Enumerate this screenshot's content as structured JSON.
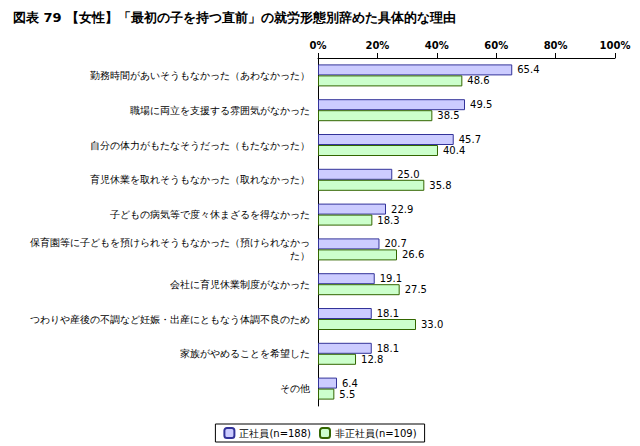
{
  "chart_data": {
    "type": "bar",
    "orientation": "horizontal",
    "title": "図表 79 【女性】「最初の子を持つ直前」の就労形態別辞めた具体的な理由",
    "categories": [
      "勤務時間があいそうもなかった（あわなかった）",
      "職場に両立を支援する雰囲気がなかった",
      "自分の体力がもたなそうだった（もたなかった）",
      "育児休業を取れそうもなかった（取れなかった）",
      "子どもの病気等で度々休まざるを得なかった",
      "保育園等に子どもを預けられそうもなかった（預けられなかった）",
      "会社に育児休業制度がなかった",
      "つわりや産後の不調など妊娠・出産にともなう体調不良のため",
      "家族がやめることを希望した",
      "その他"
    ],
    "series": [
      {
        "name": "正社員(n=188)",
        "color": "#ccccff",
        "values": [
          65.4,
          49.5,
          45.7,
          25.0,
          22.9,
          20.7,
          19.1,
          18.1,
          18.1,
          6.4
        ],
        "value_labels": [
          "65.4",
          "49.5",
          "45.7",
          "25.0",
          "22.9",
          "20.7",
          "19.1",
          "18.1",
          "18.1",
          "6.4"
        ]
      },
      {
        "name": "非正社員(n=109)",
        "color": "#ccffcc",
        "values": [
          48.6,
          38.5,
          40.4,
          35.8,
          18.3,
          26.6,
          27.5,
          33.0,
          12.8,
          5.5
        ],
        "value_labels": [
          "48.6",
          "38.5",
          "40.4",
          "35.8",
          "18.3",
          "26.6",
          "27.5",
          "33.0",
          "12.8",
          "5.5"
        ]
      }
    ],
    "xlim": [
      0,
      100
    ],
    "xticks": [
      {
        "value": 0,
        "label": "0%"
      },
      {
        "value": 20,
        "label": "20%"
      },
      {
        "value": 40,
        "label": "40%"
      },
      {
        "value": 60,
        "label": "60%"
      },
      {
        "value": 80,
        "label": "80%"
      },
      {
        "value": 100,
        "label": "100%"
      }
    ],
    "grid": false,
    "legend": "bottom",
    "data_labels": true
  }
}
